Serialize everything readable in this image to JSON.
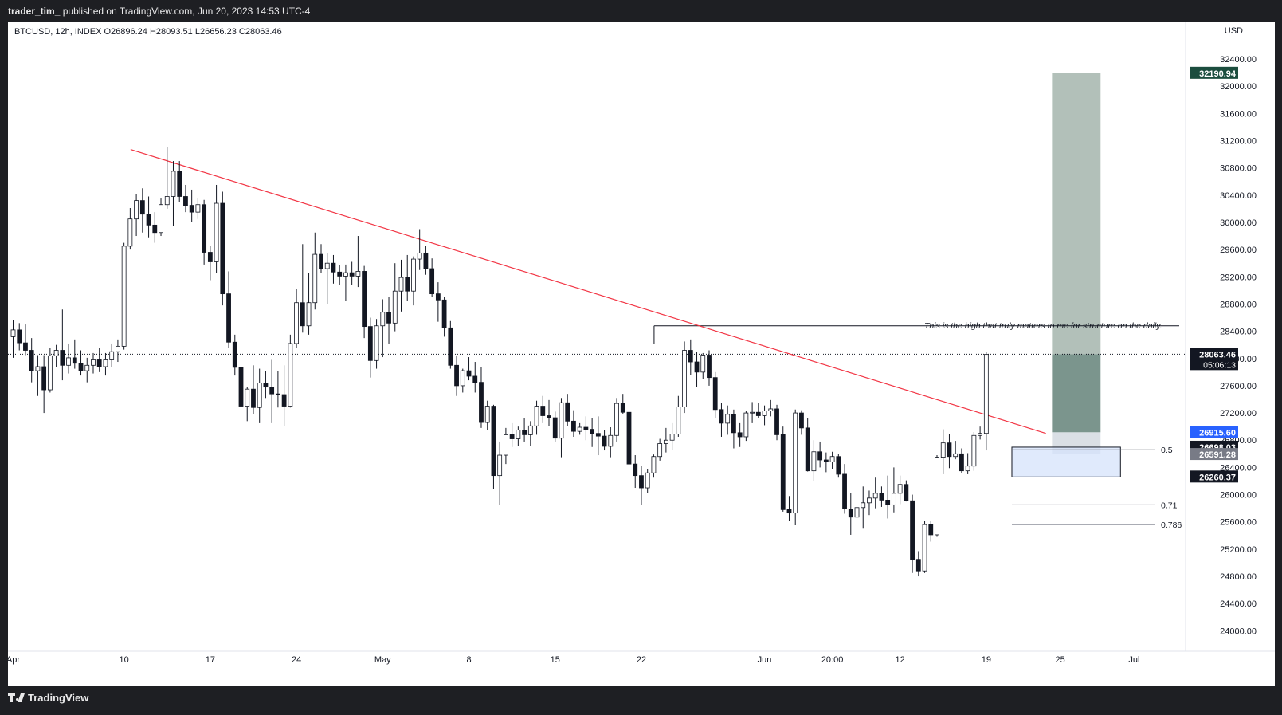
{
  "header": {
    "author": "trader_tim_",
    "published": "published on TradingView.com, Jun 20, 2023 14:53 UTC-4"
  },
  "symbol_line": "BTCUSD, 12h, INDEX  O26896.24  H28093.51  L26656.23  C28063.46",
  "currency": "USD",
  "annotation": "This is the high that truly matters to me for structure on the daily.",
  "footer": {
    "brand": "TradingView"
  },
  "colors": {
    "background": "#ffffff",
    "frame": "#1e1f23",
    "trendline": "#f23645",
    "target_zone": "#b2c0b9",
    "target_zone_dark": "#7b958d",
    "stop_zone": "#dadfe5",
    "fib_box": "#d5e3fb",
    "label_dark": "#131722",
    "label_blue": "#2962ff",
    "label_gray": "#787b86",
    "label_target": "#1b4d3e"
  },
  "chart_data": {
    "type": "candlestick",
    "symbol": "BTCUSD",
    "interval": "12h",
    "exchange": "INDEX",
    "ohlc_last": {
      "open": 26896.24,
      "high": 28093.51,
      "low": 26656.23,
      "close": 28063.46
    },
    "ylim": [
      23700,
      32950
    ],
    "y_ticks": [
      "32400.00",
      "32000.00",
      "31600.00",
      "31200.00",
      "30800.00",
      "30400.00",
      "30000.00",
      "29600.00",
      "29200.00",
      "28800.00",
      "28400.00",
      "28000.00",
      "27600.00",
      "27200.00",
      "26800.00",
      "26400.00",
      "26000.00",
      "25600.00",
      "25200.00",
      "24800.00",
      "24400.00",
      "24000.00"
    ],
    "x_ticks": [
      {
        "label": "Apr",
        "bar": 0
      },
      {
        "label": "10",
        "bar": 18
      },
      {
        "label": "17",
        "bar": 32
      },
      {
        "label": "24",
        "bar": 46
      },
      {
        "label": "May",
        "bar": 60
      },
      {
        "label": "8",
        "bar": 74
      },
      {
        "label": "15",
        "bar": 88
      },
      {
        "label": "22",
        "bar": 102
      },
      {
        "label": "Jun",
        "bar": 122
      },
      {
        "label": "20:00",
        "bar": 133
      },
      {
        "label": "12",
        "bar": 144
      },
      {
        "label": "19",
        "bar": 158
      },
      {
        "label": "25",
        "bar": 170
      },
      {
        "label": "Jul",
        "bar": 182
      }
    ],
    "candles": [
      [
        28320,
        28560,
        28010,
        28420
      ],
      [
        28420,
        28520,
        28120,
        28230
      ],
      [
        28230,
        28500,
        28050,
        28120
      ],
      [
        28120,
        28300,
        27650,
        27820
      ],
      [
        27820,
        28050,
        27450,
        27880
      ],
      [
        27880,
        28050,
        27200,
        27540
      ],
      [
        27540,
        28150,
        27500,
        28040
      ],
      [
        28040,
        28200,
        27880,
        28120
      ],
      [
        28120,
        28720,
        27680,
        27900
      ],
      [
        27900,
        28220,
        27780,
        28010
      ],
      [
        28010,
        28280,
        27850,
        27930
      ],
      [
        27930,
        28120,
        27750,
        27820
      ],
      [
        27820,
        28010,
        27650,
        27900
      ],
      [
        27900,
        28080,
        27780,
        27980
      ],
      [
        27980,
        28150,
        27800,
        27880
      ],
      [
        27880,
        28080,
        27750,
        27980
      ],
      [
        27980,
        28220,
        27880,
        28100
      ],
      [
        28100,
        28280,
        27950,
        28180
      ],
      [
        28180,
        29700,
        28130,
        29650
      ],
      [
        29650,
        30210,
        29600,
        30050
      ],
      [
        30050,
        30420,
        29800,
        30320
      ],
      [
        30320,
        30500,
        29850,
        30120
      ],
      [
        30120,
        30380,
        29780,
        29960
      ],
      [
        29960,
        30150,
        29700,
        29850
      ],
      [
        29850,
        30350,
        29800,
        30260
      ],
      [
        30260,
        31100,
        30200,
        30380
      ],
      [
        30380,
        30900,
        29950,
        30750
      ],
      [
        30750,
        30900,
        30300,
        30380
      ],
      [
        30380,
        30550,
        30150,
        30250
      ],
      [
        30250,
        30480,
        30010,
        30150
      ],
      [
        30150,
        30350,
        30050,
        30260
      ],
      [
        30260,
        30330,
        29380,
        29560
      ],
      [
        29560,
        29650,
        29150,
        29420
      ],
      [
        29420,
        30550,
        29250,
        30280
      ],
      [
        30280,
        30450,
        28780,
        28950
      ],
      [
        28950,
        29280,
        28150,
        28240
      ],
      [
        28240,
        28350,
        27750,
        27870
      ],
      [
        27870,
        28020,
        27120,
        27300
      ],
      [
        27300,
        27580,
        27080,
        27550
      ],
      [
        27550,
        27900,
        27180,
        27280
      ],
      [
        27280,
        27850,
        27050,
        27640
      ],
      [
        27640,
        27810,
        27420,
        27580
      ],
      [
        27580,
        27980,
        27050,
        27480
      ],
      [
        27480,
        27810,
        27280,
        27470
      ],
      [
        27470,
        27900,
        27010,
        27300
      ],
      [
        27300,
        28350,
        27280,
        28220
      ],
      [
        28220,
        29020,
        28160,
        28820
      ],
      [
        28820,
        29680,
        28380,
        28480
      ],
      [
        28480,
        29250,
        28350,
        28820
      ],
      [
        28820,
        29850,
        28720,
        29530
      ],
      [
        29530,
        29680,
        29250,
        29320
      ],
      [
        29320,
        29550,
        28800,
        29400
      ],
      [
        29400,
        29520,
        29100,
        29270
      ],
      [
        29270,
        29370,
        29080,
        29210
      ],
      [
        29210,
        29380,
        28850,
        29260
      ],
      [
        29260,
        29420,
        29080,
        29210
      ],
      [
        29210,
        29800,
        29050,
        29280
      ],
      [
        29280,
        29360,
        28300,
        28470
      ],
      [
        28470,
        28600,
        27720,
        27970
      ],
      [
        27970,
        28580,
        27850,
        28480
      ],
      [
        28480,
        28870,
        28020,
        28680
      ],
      [
        28680,
        28910,
        28220,
        28520
      ],
      [
        28520,
        29400,
        28400,
        28990
      ],
      [
        28990,
        29450,
        28690,
        29190
      ],
      [
        29190,
        29520,
        28850,
        28990
      ],
      [
        28990,
        29500,
        28780,
        29460
      ],
      [
        29460,
        29900,
        29300,
        29550
      ],
      [
        29550,
        29650,
        29230,
        29320
      ],
      [
        29320,
        29470,
        28900,
        28950
      ],
      [
        28950,
        29120,
        28540,
        28860
      ],
      [
        28860,
        28910,
        28320,
        28450
      ],
      [
        28450,
        28550,
        27850,
        27900
      ],
      [
        27900,
        28040,
        27450,
        27600
      ],
      [
        27600,
        27850,
        27500,
        27820
      ],
      [
        27820,
        28020,
        27680,
        27740
      ],
      [
        27740,
        27950,
        27500,
        27650
      ],
      [
        27650,
        27880,
        26980,
        27060
      ],
      [
        27060,
        27380,
        26950,
        27300
      ],
      [
        27300,
        27320,
        26080,
        26280
      ],
      [
        26280,
        26780,
        25850,
        26580
      ],
      [
        26580,
        26980,
        26450,
        26880
      ],
      [
        26880,
        27050,
        26700,
        26820
      ],
      [
        26820,
        27000,
        26720,
        26950
      ],
      [
        26950,
        27120,
        26780,
        26880
      ],
      [
        26880,
        27080,
        26720,
        27010
      ],
      [
        27010,
        27380,
        26880,
        27300
      ],
      [
        27300,
        27450,
        27050,
        27160
      ],
      [
        27160,
        27390,
        27010,
        27130
      ],
      [
        27130,
        27220,
        26780,
        26830
      ],
      [
        26830,
        27420,
        26550,
        27350
      ],
      [
        27350,
        27480,
        27010,
        27080
      ],
      [
        27080,
        27240,
        26850,
        26930
      ],
      [
        26930,
        27050,
        26880,
        26990
      ],
      [
        26990,
        27150,
        26800,
        26960
      ],
      [
        26960,
        27120,
        26700,
        26900
      ],
      [
        26900,
        27150,
        26580,
        26860
      ],
      [
        26860,
        26950,
        26650,
        26710
      ],
      [
        26710,
        26990,
        26550,
        26870
      ],
      [
        26870,
        27420,
        26780,
        27340
      ],
      [
        27340,
        27480,
        27190,
        27210
      ],
      [
        27210,
        27280,
        26380,
        26450
      ],
      [
        26450,
        26580,
        26100,
        26280
      ],
      [
        26280,
        26420,
        25850,
        26100
      ],
      [
        26100,
        26380,
        26030,
        26320
      ],
      [
        26320,
        26590,
        26250,
        26560
      ],
      [
        26560,
        26820,
        26500,
        26750
      ],
      [
        26750,
        26980,
        26620,
        26800
      ],
      [
        26800,
        27050,
        26650,
        26890
      ],
      [
        26890,
        27450,
        26850,
        27290
      ],
      [
        27290,
        28250,
        27200,
        28120
      ],
      [
        28120,
        28280,
        27760,
        27950
      ],
      [
        27950,
        28100,
        27580,
        27800
      ],
      [
        27800,
        28080,
        27700,
        28050
      ],
      [
        28050,
        28120,
        27600,
        27720
      ],
      [
        27720,
        27800,
        27120,
        27250
      ],
      [
        27250,
        27350,
        26850,
        27050
      ],
      [
        27050,
        27310,
        26880,
        27180
      ],
      [
        27180,
        27250,
        26680,
        26910
      ],
      [
        26910,
        27050,
        26700,
        26850
      ],
      [
        26850,
        27230,
        26790,
        27200
      ],
      [
        27200,
        27360,
        27050,
        27210
      ],
      [
        27210,
        27350,
        27120,
        27160
      ],
      [
        27160,
        27310,
        27020,
        27230
      ],
      [
        27230,
        27390,
        27150,
        27260
      ],
      [
        27260,
        27320,
        26800,
        26880
      ],
      [
        26880,
        27000,
        25750,
        25780
      ],
      [
        25780,
        25980,
        25620,
        25730
      ],
      [
        25730,
        27250,
        25550,
        27200
      ],
      [
        27200,
        27240,
        26880,
        26980
      ],
      [
        26980,
        27120,
        26340,
        26350
      ],
      [
        26350,
        26800,
        26200,
        26630
      ],
      [
        26630,
        26780,
        26400,
        26510
      ],
      [
        26510,
        26620,
        26330,
        26480
      ],
      [
        26480,
        26630,
        26380,
        26560
      ],
      [
        26560,
        26600,
        26250,
        26300
      ],
      [
        26300,
        26450,
        25720,
        25790
      ],
      [
        25790,
        26020,
        25410,
        25670
      ],
      [
        25670,
        25900,
        25550,
        25810
      ],
      [
        25810,
        26120,
        25500,
        25880
      ],
      [
        25880,
        26060,
        25700,
        25950
      ],
      [
        25950,
        26250,
        25800,
        26020
      ],
      [
        26020,
        26120,
        25820,
        25920
      ],
      [
        25920,
        26280,
        25650,
        25850
      ],
      [
        25850,
        26400,
        25740,
        26020
      ],
      [
        26020,
        26280,
        25860,
        26150
      ],
      [
        26150,
        26210,
        25900,
        25910
      ],
      [
        25910,
        26000,
        24850,
        25050
      ],
      [
        25050,
        25170,
        24800,
        24880
      ],
      [
        24880,
        25620,
        24850,
        25560
      ],
      [
        25560,
        25620,
        25310,
        25410
      ],
      [
        25410,
        26580,
        25380,
        26550
      ],
      [
        26550,
        26960,
        26300,
        26760
      ],
      [
        26760,
        26890,
        26390,
        26560
      ],
      [
        26560,
        26790,
        26520,
        26600
      ],
      [
        26600,
        26680,
        26320,
        26350
      ],
      [
        26350,
        26610,
        26300,
        26420
      ],
      [
        26420,
        26920,
        26350,
        26870
      ],
      [
        26870,
        27000,
        26810,
        26900
      ],
      [
        26900,
        28090,
        26650,
        28060
      ]
    ],
    "horizontal_levels": [
      {
        "label": "32190.94",
        "price": 32190.94
      },
      {
        "label": "28063.46",
        "price": 28063.46,
        "countdown": "05:06:13"
      },
      {
        "label": "26915.60",
        "price": 26915.6
      },
      {
        "label": "26698.03",
        "price": 26698.03
      },
      {
        "label": "26591.28",
        "price": 26591.28
      },
      {
        "label": "26260.37",
        "price": 26260.37
      }
    ],
    "fib_levels": [
      {
        "label": "0.5",
        "price": 26660
      },
      {
        "label": "0.71",
        "price": 25850
      },
      {
        "label": "0.786",
        "price": 25560
      }
    ],
    "trendline": {
      "from": {
        "bar": 19,
        "price": 31070
      },
      "to": {
        "bar": 168,
        "price": 26900
      }
    },
    "structure_high": {
      "price": 28480,
      "from_bar": 104
    },
    "position": {
      "entry": 26915.6,
      "target": 32190.94,
      "stop": 26591.28,
      "from_bar": 169,
      "to_bar": 173
    }
  }
}
